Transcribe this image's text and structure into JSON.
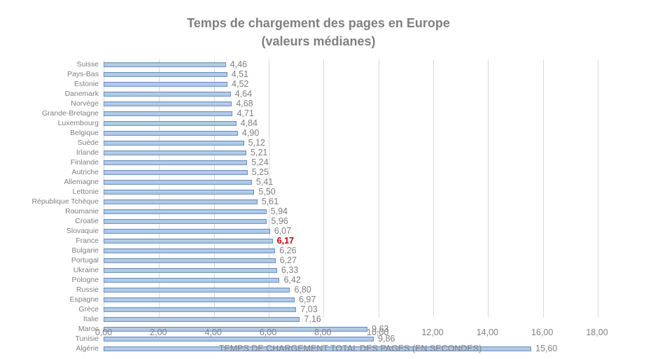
{
  "title": "Temps de chargement des pages en Europe",
  "subtitle": "(valeurs médianes)",
  "colors": {
    "bar_fill": "#aac4e2",
    "bar_border": "#6f94c1",
    "gridline": "#d9d9d9",
    "text": "#808080",
    "title_text": "#7f7f7f",
    "highlight_value": "#c00000"
  },
  "chart_data": {
    "type": "bar",
    "orientation": "horizontal",
    "title": "Temps de chargement des pages en Europe (valeurs médianes)",
    "xlabel": "TEMPS DE CHARGEMENT TOTAL DES PAGES (EN SECONDES)",
    "ylabel": "",
    "xlim": [
      0,
      18
    ],
    "grid": "vertical-major",
    "legend": "none",
    "x_tick_labels": [
      "0,00",
      "2,00",
      "4,00",
      "6,00",
      "8,00",
      "10,00",
      "12,00",
      "14,00",
      "16,00",
      "18,00"
    ],
    "categories": [
      "Suisse",
      "Pays-Bas",
      "Estonie",
      "Danemark",
      "Norvège",
      "Grande-Bretagne",
      "Luxembourg",
      "Belgique",
      "Suède",
      "Irlande",
      "Finlande",
      "Autriche",
      "Allemagne",
      "Lettonie",
      "République Tchèque",
      "Roumanie",
      "Croatie",
      "Slovaquie",
      "France",
      "Bulgarie",
      "Portugal",
      "Ukraine",
      "Pologne",
      "Russie",
      "Espagne",
      "Grèce",
      "Italie",
      "Maroc",
      "Tunisie",
      "Algérie"
    ],
    "values": [
      4.46,
      4.51,
      4.52,
      4.64,
      4.68,
      4.71,
      4.84,
      4.9,
      5.12,
      5.21,
      5.24,
      5.25,
      5.41,
      5.5,
      5.61,
      5.94,
      5.96,
      6.07,
      6.17,
      6.26,
      6.27,
      6.33,
      6.42,
      6.8,
      6.97,
      7.03,
      7.16,
      9.63,
      9.86,
      15.6
    ],
    "value_labels": [
      "4,46",
      "4,51",
      "4,52",
      "4,64",
      "4,68",
      "4,71",
      "4,84",
      "4,90",
      "5,12",
      "5,21",
      "5,24",
      "5,25",
      "5,41",
      "5,50",
      "5,61",
      "5,94",
      "5,96",
      "6,07",
      "6,17",
      "6,26",
      "6,27",
      "6,33",
      "6,42",
      "6,80",
      "6,97",
      "7,03",
      "7,16",
      "9,63",
      "9,86",
      "15,60"
    ],
    "highlight": {
      "category": "France",
      "index": 18,
      "color": "#c00000"
    }
  }
}
